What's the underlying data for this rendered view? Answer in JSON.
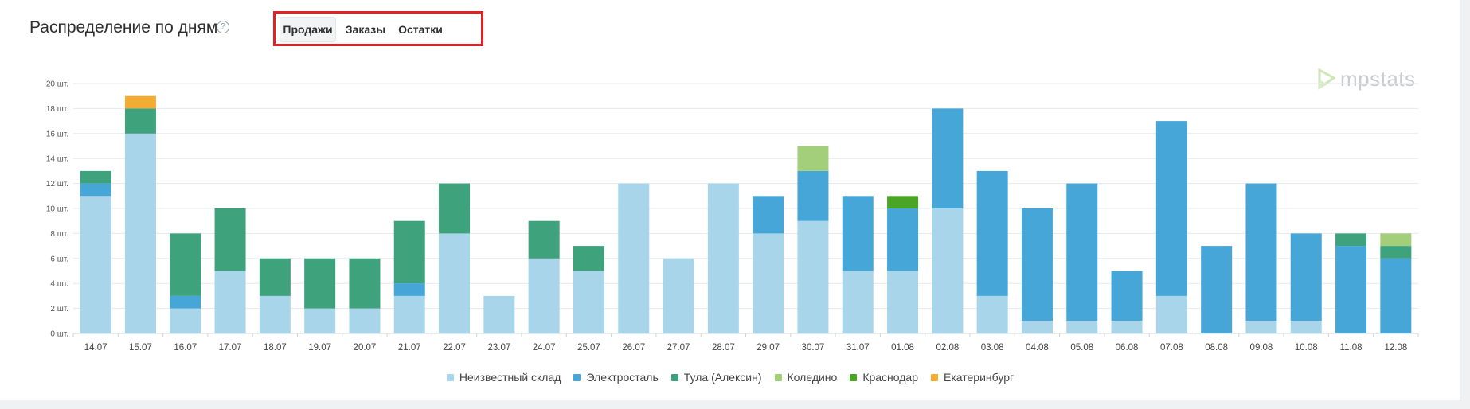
{
  "header": {
    "title": "Распределение по дням",
    "help_icon": "help-circle-icon"
  },
  "tabs": [
    {
      "label": "Продажи",
      "active": true
    },
    {
      "label": "Заказы",
      "active": false
    },
    {
      "label": "Остатки",
      "active": false
    }
  ],
  "watermark": {
    "text": "mpstats",
    "icon": "mpstats-logo-icon"
  },
  "colors": {
    "Неизвестный склад": "#a8d5ea",
    "Электросталь": "#47a6d8",
    "Тула (Алексин)": "#3ea37c",
    "Коледино": "#a4cf7a",
    "Краснодар": "#4aa524",
    "Екатеринбург": "#f2ab33",
    "highlight_box": "#e32023"
  },
  "chart_data": {
    "type": "bar",
    "stacked": true,
    "categories": [
      "14.07",
      "15.07",
      "16.07",
      "17.07",
      "18.07",
      "19.07",
      "20.07",
      "21.07",
      "22.07",
      "23.07",
      "24.07",
      "25.07",
      "26.07",
      "27.07",
      "28.07",
      "29.07",
      "30.07",
      "31.07",
      "01.08",
      "02.08",
      "03.08",
      "04.08",
      "05.08",
      "06.08",
      "07.08",
      "08.08",
      "09.08",
      "10.08",
      "11.08",
      "12.08"
    ],
    "ylim": [
      0,
      20
    ],
    "yticks": [
      "0 шт.",
      "2 шт.",
      "4 шт.",
      "6 шт.",
      "8 шт.",
      "10 шт.",
      "12 шт.",
      "14 шт.",
      "16 шт.",
      "18 шт.",
      "20 шт."
    ],
    "legend_position": "bottom",
    "grid": true,
    "series": [
      {
        "name": "Неизвестный склад",
        "values": [
          11,
          16,
          2,
          5,
          3,
          2,
          2,
          3,
          8,
          3,
          6,
          5,
          12,
          6,
          12,
          8,
          9,
          5,
          5,
          10,
          3,
          1,
          1,
          1,
          3,
          0,
          1,
          1,
          0,
          0
        ]
      },
      {
        "name": "Электросталь",
        "values": [
          1,
          0,
          1,
          0,
          0,
          0,
          0,
          1,
          0,
          0,
          0,
          0,
          0,
          0,
          0,
          3,
          4,
          6,
          5,
          8,
          10,
          9,
          11,
          4,
          14,
          7,
          11,
          7,
          7,
          6
        ]
      },
      {
        "name": "Тула (Алексин)",
        "values": [
          1,
          2,
          5,
          5,
          3,
          4,
          4,
          5,
          4,
          0,
          3,
          2,
          0,
          0,
          0,
          0,
          0,
          0,
          0,
          0,
          0,
          0,
          0,
          0,
          0,
          0,
          0,
          0,
          1,
          1
        ]
      },
      {
        "name": "Коледино",
        "values": [
          0,
          0,
          0,
          0,
          0,
          0,
          0,
          0,
          0,
          0,
          0,
          0,
          0,
          0,
          0,
          0,
          2,
          0,
          0,
          0,
          0,
          0,
          0,
          0,
          0,
          0,
          0,
          0,
          0,
          1
        ]
      },
      {
        "name": "Краснодар",
        "values": [
          0,
          0,
          0,
          0,
          0,
          0,
          0,
          0,
          0,
          0,
          0,
          0,
          0,
          0,
          0,
          0,
          0,
          0,
          1,
          0,
          0,
          0,
          0,
          0,
          0,
          0,
          0,
          0,
          0,
          0
        ]
      },
      {
        "name": "Екатеринбург",
        "values": [
          0,
          1,
          0,
          0,
          0,
          0,
          0,
          0,
          0,
          0,
          0,
          0,
          0,
          0,
          0,
          0,
          0,
          0,
          0,
          0,
          0,
          0,
          0,
          0,
          0,
          0,
          0,
          0,
          0,
          0
        ]
      }
    ]
  }
}
